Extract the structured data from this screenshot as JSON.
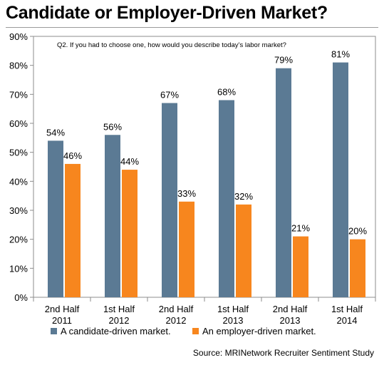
{
  "page": {
    "title": "Candidate or Employer-Driven Market?",
    "source": "Source: MRINetwork Recruiter Sentiment Study"
  },
  "chart_data": {
    "type": "bar",
    "subtitle": "Q2. If you had to choose one, how would you describe today’s labor market?",
    "categories": [
      [
        "2nd Half",
        "2011"
      ],
      [
        "1st Half",
        "2012"
      ],
      [
        "2nd Half",
        "2012"
      ],
      [
        "1st Half",
        "2013"
      ],
      [
        "2nd Half",
        "2013"
      ],
      [
        "1st Half",
        "2014"
      ]
    ],
    "series": [
      {
        "name": "A candidate-driven market.",
        "color": "#5b7a94",
        "values": [
          54,
          56,
          67,
          68,
          79,
          81
        ],
        "labels": [
          "54%",
          "56%",
          "67%",
          "68%",
          "79%",
          "81%"
        ]
      },
      {
        "name": "An employer-driven market.",
        "color": "#f7861e",
        "values": [
          46,
          44,
          33,
          32,
          21,
          20
        ],
        "labels": [
          "46%",
          "44%",
          "33%",
          "32%",
          "21%",
          "20%"
        ]
      }
    ],
    "ylim": [
      0,
      90
    ],
    "yticks": [
      "0%",
      "10%",
      "20%",
      "30%",
      "40%",
      "50%",
      "60%",
      "70%",
      "80%",
      "90%"
    ],
    "grid": false,
    "legend_position": "bottom"
  }
}
